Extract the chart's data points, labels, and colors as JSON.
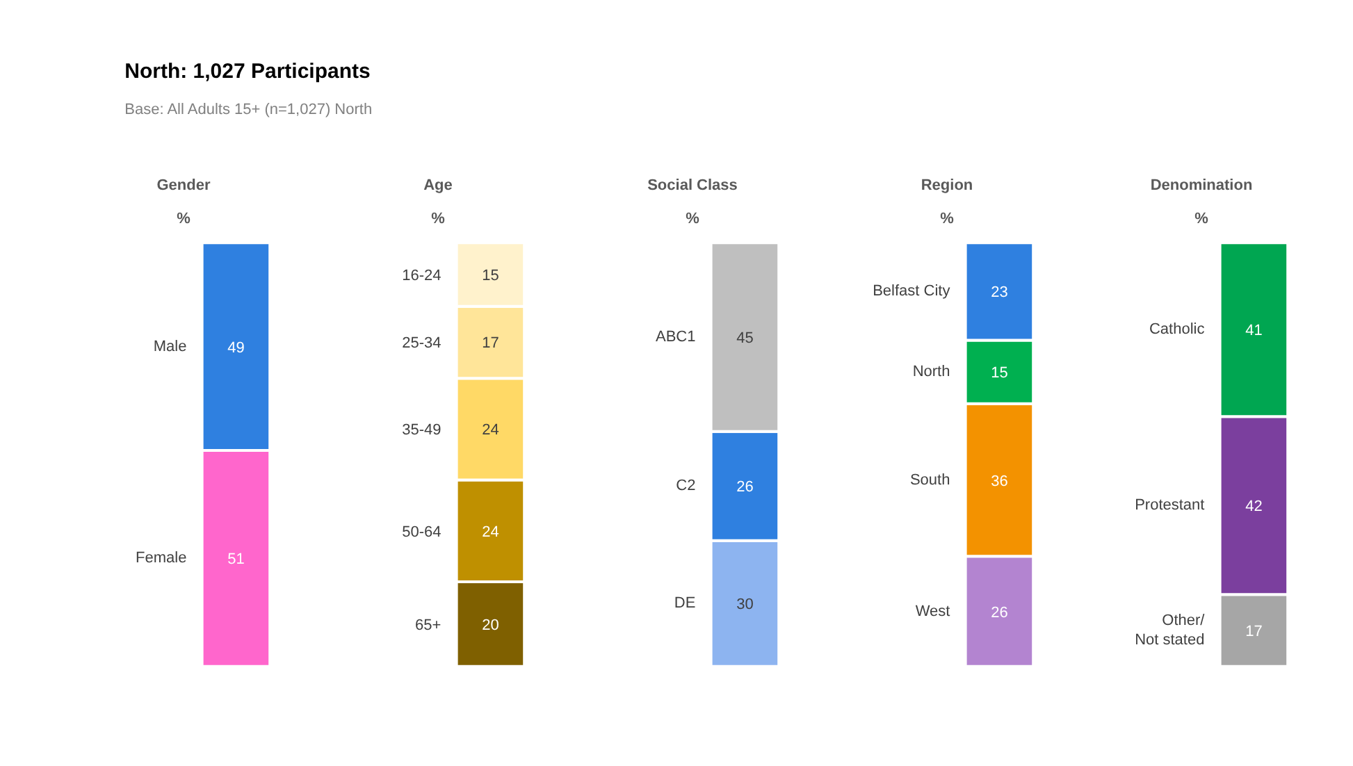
{
  "chart_data": [
    {
      "type": "other",
      "title": "North: 1,027 Participants",
      "subtitle": "Base: All Adults 15+ (n=1,027) North"
    },
    {
      "type": "bar",
      "title": "Gender",
      "subtitle": "%",
      "categories": [
        null
      ],
      "stacked": true,
      "data_labels": true,
      "series": [
        {
          "name": "Female",
          "color": "#ff66cc",
          "values": [
            51
          ]
        },
        {
          "name": "Male",
          "color": "#2f80e0",
          "values": [
            49
          ]
        }
      ]
    },
    {
      "type": "bar",
      "title": "Age",
      "subtitle": "%",
      "categories": [
        null
      ],
      "stacked": true,
      "data_labels": true,
      "series": [
        {
          "name": "65+",
          "color": "#7f6000",
          "values": [
            20
          ]
        },
        {
          "name": "50-64",
          "color": "#bf9000",
          "values": [
            24
          ]
        },
        {
          "name": "35-49",
          "color": "#ffd966",
          "values": [
            24
          ]
        },
        {
          "name": "25-34",
          "color": "#ffe599",
          "values": [
            17
          ]
        },
        {
          "name": "16-24",
          "color": "#fff2cc",
          "values": [
            15
          ]
        }
      ]
    },
    {
      "type": "bar",
      "title": "Social Class",
      "subtitle": "%",
      "categories": [
        null
      ],
      "stacked": true,
      "data_labels": true,
      "series": [
        {
          "name": "DE",
          "color": "#8db4f0",
          "values": [
            30
          ]
        },
        {
          "name": "C2",
          "color": "#2f80e0",
          "values": [
            26
          ]
        },
        {
          "name": "ABC1",
          "color": "#bfbfbf",
          "values": [
            45
          ]
        }
      ]
    },
    {
      "type": "bar",
      "title": "Region",
      "subtitle": "%",
      "categories": [
        null
      ],
      "stacked": true,
      "data_labels": true,
      "series": [
        {
          "name": "West",
          "color": "#b384d0",
          "values": [
            26
          ]
        },
        {
          "name": "South",
          "color": "#f39200",
          "values": [
            36
          ]
        },
        {
          "name": "North",
          "color": "#00b050",
          "values": [
            15
          ]
        },
        {
          "name": "Belfast City",
          "color": "#2f80e0",
          "values": [
            23
          ]
        }
      ]
    },
    {
      "type": "bar",
      "title": "Denomination",
      "subtitle": "%",
      "categories": [
        null
      ],
      "stacked": true,
      "data_labels": true,
      "series": [
        {
          "name": "Other/\nNot stated",
          "color": "#a6a6a6",
          "values": [
            17
          ]
        },
        {
          "name": "Protestant",
          "color": "#7b3f9e",
          "values": [
            42
          ]
        },
        {
          "name": "Catholic",
          "color": "#00a651",
          "values": [
            41
          ]
        }
      ]
    }
  ]
}
